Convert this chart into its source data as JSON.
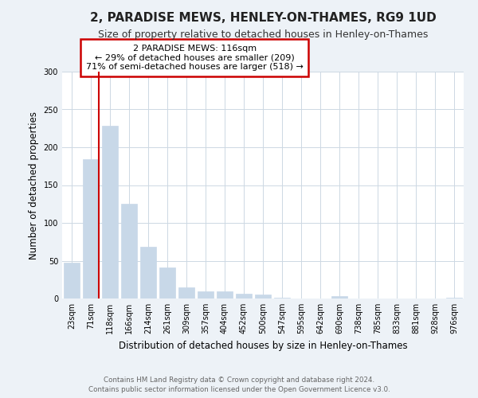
{
  "title": "2, PARADISE MEWS, HENLEY-ON-THAMES, RG9 1UD",
  "subtitle": "Size of property relative to detached houses in Henley-on-Thames",
  "xlabel": "Distribution of detached houses by size in Henley-on-Thames",
  "ylabel": "Number of detached properties",
  "bar_color": "#c8d8e8",
  "bar_edge_color": "#c8d8e8",
  "highlight_line_color": "#cc0000",
  "annotation_title": "2 PARADISE MEWS: 116sqm",
  "annotation_line1": "← 29% of detached houses are smaller (209)",
  "annotation_line2": "71% of semi-detached houses are larger (518) →",
  "categories": [
    "23sqm",
    "71sqm",
    "118sqm",
    "166sqm",
    "214sqm",
    "261sqm",
    "309sqm",
    "357sqm",
    "404sqm",
    "452sqm",
    "500sqm",
    "547sqm",
    "595sqm",
    "642sqm",
    "690sqm",
    "738sqm",
    "785sqm",
    "833sqm",
    "881sqm",
    "928sqm",
    "976sqm"
  ],
  "values": [
    47,
    184,
    228,
    125,
    68,
    41,
    15,
    10,
    9,
    6,
    5,
    1,
    0,
    0,
    3,
    0,
    0,
    0,
    0,
    0,
    1
  ],
  "ylim": [
    0,
    300
  ],
  "yticks": [
    0,
    50,
    100,
    150,
    200,
    250,
    300
  ],
  "footer1": "Contains HM Land Registry data © Crown copyright and database right 2024.",
  "footer2": "Contains public sector information licensed under the Open Government Licence v3.0.",
  "bg_color": "#edf2f7",
  "plot_bg_color": "#ffffff",
  "title_fontsize": 11,
  "subtitle_fontsize": 9
}
